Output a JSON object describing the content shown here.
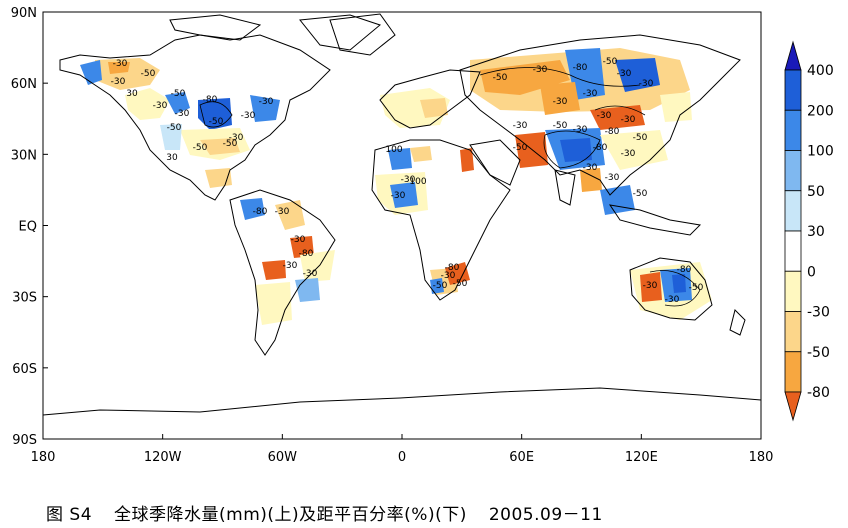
{
  "map": {
    "lon_ticks": [
      "180",
      "120W",
      "60W",
      "0",
      "60E",
      "120E",
      "180"
    ],
    "lat_ticks": [
      "90N",
      "60N",
      "30N",
      "EQ",
      "30S",
      "60S",
      "90S"
    ],
    "contour_labels": [
      "-30",
      "-50",
      "-30",
      "30",
      "-50",
      "-30",
      "-30",
      "-50",
      "-80",
      "-30",
      "-50",
      "30",
      "-30",
      "-30",
      "-50",
      "-50",
      "-80",
      "-30",
      "-30",
      "-80",
      "-30",
      "-30",
      "100",
      "-30",
      "-30",
      "100",
      "-30",
      "-50",
      "-80",
      "-50",
      "-50",
      "-30",
      "-80",
      "-50",
      "-30",
      "-30",
      "-30",
      "-30",
      "-30",
      "-30",
      "-30",
      "-50",
      "-30",
      "-80",
      "-50",
      "-80",
      "-30",
      "-50",
      "-30",
      "-30",
      "-50",
      "-80",
      "-50",
      "-30",
      "-30"
    ]
  },
  "colorbar": {
    "labels": [
      "400",
      "200",
      "100",
      "50",
      "30",
      "0",
      "-30",
      "-50",
      "-80"
    ],
    "colors": [
      "#1a1ab8",
      "#1e5fd8",
      "#3c88e8",
      "#7fb8f0",
      "#c8e6f8",
      "#ffffff",
      "#fff8c0",
      "#fcd68a",
      "#f7a740",
      "#e8601e"
    ]
  },
  "caption": {
    "figure": "图 S4",
    "title": "全球季降水量(mm)(上)及距平百分率(%)(下)",
    "period": "2005.09－11"
  }
}
